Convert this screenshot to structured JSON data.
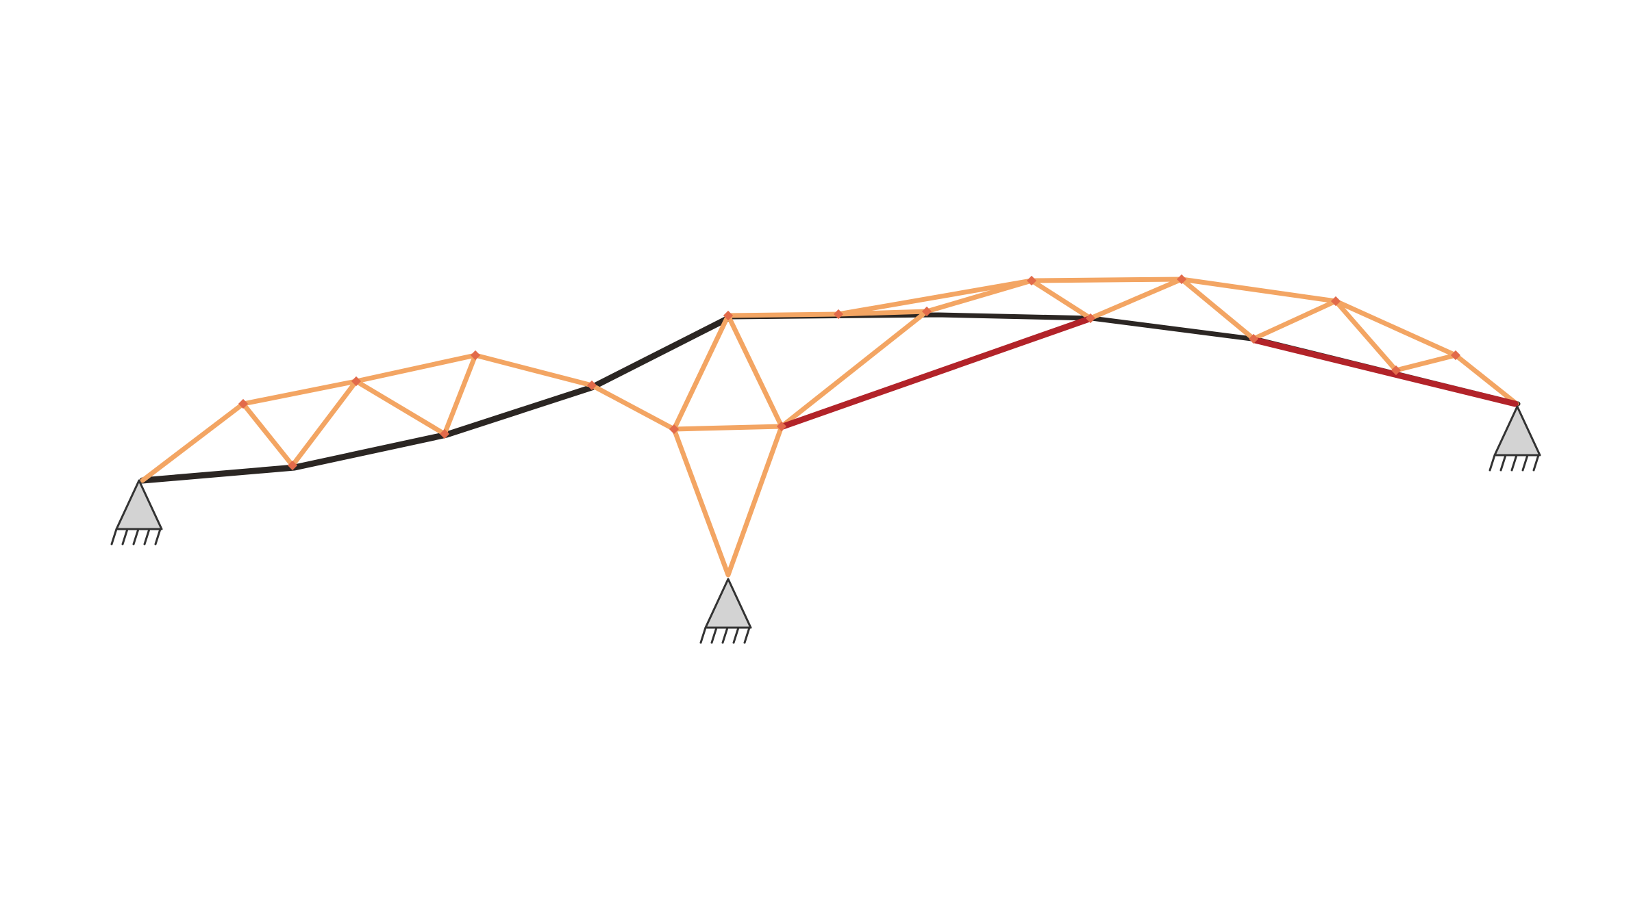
{
  "diagram": {
    "kind": "deformed truss structure with pinned supports",
    "colors": {
      "background": "#ffffff",
      "reference_member": "#2b2623",
      "deformed_member": "#f3a563",
      "stressed_member": "#b22329",
      "node_marker": "#e26a4a",
      "support_fill": "#d3d3d3",
      "support_stroke": "#333333"
    },
    "supports": [
      {
        "id": "left-support",
        "type": "pin"
      },
      {
        "id": "center-support",
        "type": "pin"
      },
      {
        "id": "right-support",
        "type": "pin"
      }
    ]
  }
}
